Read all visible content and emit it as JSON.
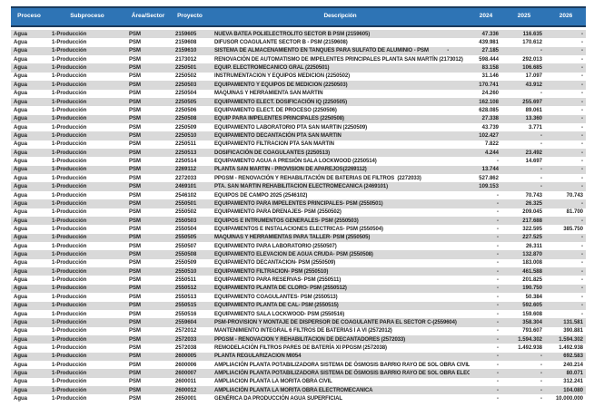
{
  "colors": {
    "header_bg": "#2E74B5",
    "header_border": "#1B3B5D",
    "stripe": "#D9D9D9",
    "text": "#1F1F1F",
    "header_text": "#FFFFFF"
  },
  "header": {
    "columns": [
      "Proceso",
      "Subproceso",
      "Área/Sector",
      "Proyecto",
      "Descripción",
      "2024",
      "2025",
      "2026"
    ]
  },
  "rows": [
    {
      "proceso": "Agua",
      "subproceso": "1-Producción",
      "area": "PSM",
      "proyecto": "2159605",
      "descripcion": "NUEVA BATEA POLIELECTROLITO SECTOR B PSM (2159605)",
      "y2024": "47.336",
      "y2025": "116.635",
      "y2026": "-"
    },
    {
      "proceso": "Agua",
      "subproceso": "1-Producción",
      "area": "PSM",
      "proyecto": "2159608",
      "descripcion": "DIFUSOR COAGULANTE SECTOR B - PSM (2159608)",
      "y2024": "439.981",
      "y2025": "170.612",
      "y2026": "-"
    },
    {
      "proceso": "Agua",
      "subproceso": "1-Producción",
      "area": "PSM",
      "proyecto": "2159610",
      "descripcion": "SISTEMA DE ALMACENAMIENTO EN TANQUES PARA SULFATO DE ALUMINIO - PSM             -",
      "y2024": "27.185",
      "y2025": "-",
      "y2026": "-"
    },
    {
      "proceso": "Agua",
      "subproceso": "1-Producción",
      "area": "PSM",
      "proyecto": "2173012",
      "descripcion": "RENOVACIÓN DE AUTOMATISMO DE IMPELENTES PRINCIPALES PLANTA SAN MARTÍN (2173012)",
      "y2024": "598.444",
      "y2025": "292.013",
      "y2026": "-"
    },
    {
      "proceso": "Agua",
      "subproceso": "1-Producción",
      "area": "PSM",
      "proyecto": "2250501",
      "descripcion": "EQUIP. ELECTROMECANICO GRAL (2250501)",
      "y2024": "83.158",
      "y2025": "106.685",
      "y2026": "-"
    },
    {
      "proceso": "Agua",
      "subproceso": "1-Producción",
      "area": "PSM",
      "proyecto": "2250502",
      "descripcion": "INSTRUMENTACION Y EQUIPOS MEDICION (2250502)",
      "y2024": "31.146",
      "y2025": "17.097",
      "y2026": "-"
    },
    {
      "proceso": "Agua",
      "subproceso": "1-Producción",
      "area": "PSM",
      "proyecto": "2250503",
      "descripcion": "EQUIPAMIENTO Y EQUIPOS DE MEDICION (2250503)",
      "y2024": "170.741",
      "y2025": "43.912",
      "y2026": "-"
    },
    {
      "proceso": "Agua",
      "subproceso": "1-Producción",
      "area": "PSM",
      "proyecto": "2250504",
      "descripcion": "MAQUINAS Y HERRAMIENTA SAN MARTIN",
      "y2024": "24.260",
      "y2025": "-",
      "y2026": "-"
    },
    {
      "proceso": "Agua",
      "subproceso": "1-Producción",
      "area": "PSM",
      "proyecto": "2250505",
      "descripcion": "EQUIPAMIENTO ELECT. DOSIFICACIÓN IQ (2250505)",
      "y2024": "162.108",
      "y2025": "255.697",
      "y2026": "-"
    },
    {
      "proceso": "Agua",
      "subproceso": "1-Producción",
      "area": "PSM",
      "proyecto": "2250506",
      "descripcion": "EQUIPAMIENTO ELECT. DE PROCESO (2250506)",
      "y2024": "628.085",
      "y2025": "89.061",
      "y2026": "-"
    },
    {
      "proceso": "Agua",
      "subproceso": "1-Producción",
      "area": "PSM",
      "proyecto": "2250508",
      "descripcion": "EQUIP PARA IMPELENTES PRINCIPALES (2250508)",
      "y2024": "27.338",
      "y2025": "13.360",
      "y2026": "-"
    },
    {
      "proceso": "Agua",
      "subproceso": "1-Producción",
      "area": "PSM",
      "proyecto": "2250509",
      "descripcion": "EQUIPAMIENTO LABORATORIO PTA SAN MARTIN (2250509)",
      "y2024": "43.739",
      "y2025": "3.771",
      "y2026": "-"
    },
    {
      "proceso": "Agua",
      "subproceso": "1-Producción",
      "area": "PSM",
      "proyecto": "2250510",
      "descripcion": "EQUIPAMIENTO DECANTACIÓN PTA SAN MARTIN",
      "y2024": "102.427",
      "y2025": "-",
      "y2026": "-"
    },
    {
      "proceso": "Agua",
      "subproceso": "1-Producción",
      "area": "PSM",
      "proyecto": "2250511",
      "descripcion": "EQUIPAMIENTO FILTRACIÓN PTA SAN MARTIN",
      "y2024": "7.822",
      "y2025": "-",
      "y2026": "-"
    },
    {
      "proceso": "Agua",
      "subproceso": "1-Producción",
      "area": "PSM",
      "proyecto": "2250513",
      "descripcion": "DOSIFICACIÓN DE COAGULANTES (2250513)",
      "y2024": "4.244",
      "y2025": "23.492",
      "y2026": "-"
    },
    {
      "proceso": "Agua",
      "subproceso": "1-Producción",
      "area": "PSM",
      "proyecto": "2250514",
      "descripcion": "EQUIPAMIENTO AGUA A PRESIÓN SALA LOCKWOOD (2250514)",
      "y2024": "-",
      "y2025": "14.697",
      "y2026": "-"
    },
    {
      "proceso": "Agua",
      "subproceso": "1-Producción",
      "area": "PSM",
      "proyecto": "2269112",
      "descripcion": "PLANTA SAN MARTIN - PROVISIÓN DE APAREJOS(2269112)",
      "y2024": "13.744",
      "y2025": "-",
      "y2026": "-"
    },
    {
      "proceso": "Agua",
      "subproceso": "1-Producción",
      "area": "PSM",
      "proyecto": "2272033",
      "descripcion": "PPGSM - RENOVACIÓN Y REHABILITACIÓN DE BATERIAS DE FILTROS  (2272033)",
      "y2024": "527.862",
      "y2025": "-",
      "y2026": "-"
    },
    {
      "proceso": "Agua",
      "subproceso": "1-Producción",
      "area": "PSM",
      "proyecto": "2469101",
      "descripcion": "PTA. SAN MARTIN REHABILITACION ELECTROMECANICA (2469101)",
      "y2024": "109.153",
      "y2025": "-",
      "y2026": "-"
    },
    {
      "proceso": "Agua",
      "subproceso": "1-Producción",
      "area": "PSM",
      "proyecto": "2546102",
      "descripcion": "EQUIPOS DE CAMPO 2025 (2546102)",
      "y2024": "-",
      "y2025": "70.743",
      "y2026": "70.743"
    },
    {
      "proceso": "Agua",
      "subproceso": "1-Producción",
      "area": "PSM",
      "proyecto": "2550501",
      "descripcion": "EQUIPAMIENTO PARA IMPELENTES PRINCIPALES- PSM (2550501)",
      "y2024": "-",
      "y2025": "26.325",
      "y2026": "-"
    },
    {
      "proceso": "Agua",
      "subproceso": "1-Producción",
      "area": "PSM",
      "proyecto": "2550502",
      "descripcion": "EQUIPAMIENTO PARA DRENAJES- PSM (2550502)",
      "y2024": "-",
      "y2025": "209.045",
      "y2026": "81.700"
    },
    {
      "proceso": "Agua",
      "subproceso": "1-Producción",
      "area": "PSM",
      "proyecto": "2550503",
      "descripcion": "EQUIPOS E INTRUMENTOS GENERALES- PSM (2550503)",
      "y2024": "-",
      "y2025": "217.688",
      "y2026": "-"
    },
    {
      "proceso": "Agua",
      "subproceso": "1-Producción",
      "area": "PSM",
      "proyecto": "2550504",
      "descripcion": "EQUIPAMIENTOS E INSTALACIONES ELECTRICAS- PSM (2550504)",
      "y2024": "-",
      "y2025": "322.595",
      "y2026": "385.750"
    },
    {
      "proceso": "Agua",
      "subproceso": "1-Producción",
      "area": "PSM",
      "proyecto": "2550505",
      "descripcion": "MAQUINAS Y HERRAMIENTAS PARA TALLER- PSM (2550505)",
      "y2024": "-",
      "y2025": "227.525",
      "y2026": "-"
    },
    {
      "proceso": "Agua",
      "subproceso": "1-Producción",
      "area": "PSM",
      "proyecto": "2550507",
      "descripcion": "EQUIPAMIENTO PARA LABORATORIO (2550507)",
      "y2024": "-",
      "y2025": "26.311",
      "y2026": "-"
    },
    {
      "proceso": "Agua",
      "subproceso": "1-Producción",
      "area": "PSM",
      "proyecto": "2550508",
      "descripcion": "EQUIPAMIENTO ELEVACION DE AGUA CRUDA- PSM (2550508)",
      "y2024": "-",
      "y2025": "132.870",
      "y2026": "-"
    },
    {
      "proceso": "Agua",
      "subproceso": "1-Producción",
      "area": "PSM",
      "proyecto": "2550509",
      "descripcion": "EQUIPAMIENTO DECANTACION- PSM (2550509)",
      "y2024": "-",
      "y2025": "183.008",
      "y2026": "-"
    },
    {
      "proceso": "Agua",
      "subproceso": "1-Producción",
      "area": "PSM",
      "proyecto": "2550510",
      "descripcion": "EQUIPAMIENTO FILTRACION- PSM (2550510)",
      "y2024": "-",
      "y2025": "461.588",
      "y2026": "-"
    },
    {
      "proceso": "Agua",
      "subproceso": "1-Producción",
      "area": "PSM",
      "proyecto": "2550511",
      "descripcion": "EQUIPAMIENTO PARA RESERVAS- PSM (2550511)",
      "y2024": "-",
      "y2025": "201.825",
      "y2026": "-"
    },
    {
      "proceso": "Agua",
      "subproceso": "1-Producción",
      "area": "PSM",
      "proyecto": "2550512",
      "descripcion": "EQUIPAMIENTO PLANTA DE CLORO- PSM (2550512)",
      "y2024": "-",
      "y2025": "190.750",
      "y2026": "-"
    },
    {
      "proceso": "Agua",
      "subproceso": "1-Producción",
      "area": "PSM",
      "proyecto": "2550513",
      "descripcion": "EQUIPAMIENTO COAGULANTES- PSM (2550513)",
      "y2024": "-",
      "y2025": "50.384",
      "y2026": "-"
    },
    {
      "proceso": "Agua",
      "subproceso": "1-Producción",
      "area": "PSM",
      "proyecto": "2550515",
      "descripcion": "EQUIPAMIENTO PLANTA DE CAL- PSM (2550515)",
      "y2024": "-",
      "y2025": "592.605",
      "y2026": "-"
    },
    {
      "proceso": "Agua",
      "subproceso": "1-Producción",
      "area": "PSM",
      "proyecto": "2550516",
      "descripcion": "EQUIPAMIENTO SALA LOCKWOOD- PSM (2550516)",
      "y2024": "-",
      "y2025": "159.608",
      "y2026": "-"
    },
    {
      "proceso": "Agua",
      "subproceso": "1-Producción",
      "area": "PSM",
      "proyecto": "2559604",
      "descripcion": "PSM-PROVISION Y MONTAJE DE DISPERSOR DE COAGULANTE PARA EL SECTOR C-(2559604)",
      "y2024": "-",
      "y2025": "358.304",
      "y2026": "131.581"
    },
    {
      "proceso": "Agua",
      "subproceso": "1-Producción",
      "area": "PSM",
      "proyecto": "2572012",
      "descripcion": "MANTENIMIENTO INTEGRAL 6 FILTROS DE BATERIAS I A VI (2572012)",
      "y2024": "-",
      "y2025": "793.607",
      "y2026": "390.881"
    },
    {
      "proceso": "Agua",
      "subproceso": "1-Producción",
      "area": "PSM",
      "proyecto": "2572033",
      "descripcion": "PPGSM - RENOVACION Y REHABILITACION DE DECANTADORES (2572033)",
      "y2024": "-",
      "y2025": "1.594.302",
      "y2026": "1.594.302"
    },
    {
      "proceso": "Agua",
      "subproceso": "1-Producción",
      "area": "PSM",
      "proyecto": "2572038",
      "descripcion": "REMODELACIÓN FILTROS PARES DE BATERÍA XI PPGSM (2572038)",
      "y2024": "-",
      "y2025": "1.492.938",
      "y2026": "1.492.938"
    },
    {
      "proceso": "Agua",
      "subproceso": "1-Producción",
      "area": "PSM",
      "proyecto": "2600005",
      "descripcion": "PLANTA REGULARIZACIÓN MI054",
      "y2024": "-",
      "y2025": "-",
      "y2026": "692.583"
    },
    {
      "proceso": "Agua",
      "subproceso": "1-Producción",
      "area": "PSM",
      "proyecto": "2600006",
      "descripcion": "AMPLIACIÓN PLANTA POTABILIZADORA SISTEMA DE ÓSMOSIS BARRIO RAYO DE SOL OBRA CIVIL",
      "y2024": "-",
      "y2025": "-",
      "y2026": "240.214"
    },
    {
      "proceso": "Agua",
      "subproceso": "1-Producción",
      "area": "PSM",
      "proyecto": "2600007",
      "descripcion": "AMPLIACIÓN PLANTA POTABILIZADORA SISTEMA DE ÓSMOSIS BARRIO RAYO DE SOL OBRA ELECTROMECANICA",
      "y2024": "-",
      "y2025": "-",
      "y2026": "80.071"
    },
    {
      "proceso": "Agua",
      "subproceso": "1-Producción",
      "area": "PSM",
      "proyecto": "2600011",
      "descripcion": "AMPLIACIÓN PLANTA LA MORITA OBRA CIVIL",
      "y2024": "-",
      "y2025": "-",
      "y2026": "312.241"
    },
    {
      "proceso": "Agua",
      "subproceso": "1-Producción",
      "area": "PSM",
      "proyecto": "2600012",
      "descripcion": "AMPLIACIÓN PLANTA LA MORITA OBRA ELECTROMECANICA",
      "y2024": "-",
      "y2025": "-",
      "y2026": "104.080"
    },
    {
      "proceso": "Agua",
      "subproceso": "1-Producción",
      "area": "PSM",
      "proyecto": "2650001",
      "descripcion": "GENÉRICA DA PRODUCCIÓN AGUA SUPERFICIAL",
      "y2024": "-",
      "y2025": "-",
      "y2026": "10.000.000"
    }
  ]
}
